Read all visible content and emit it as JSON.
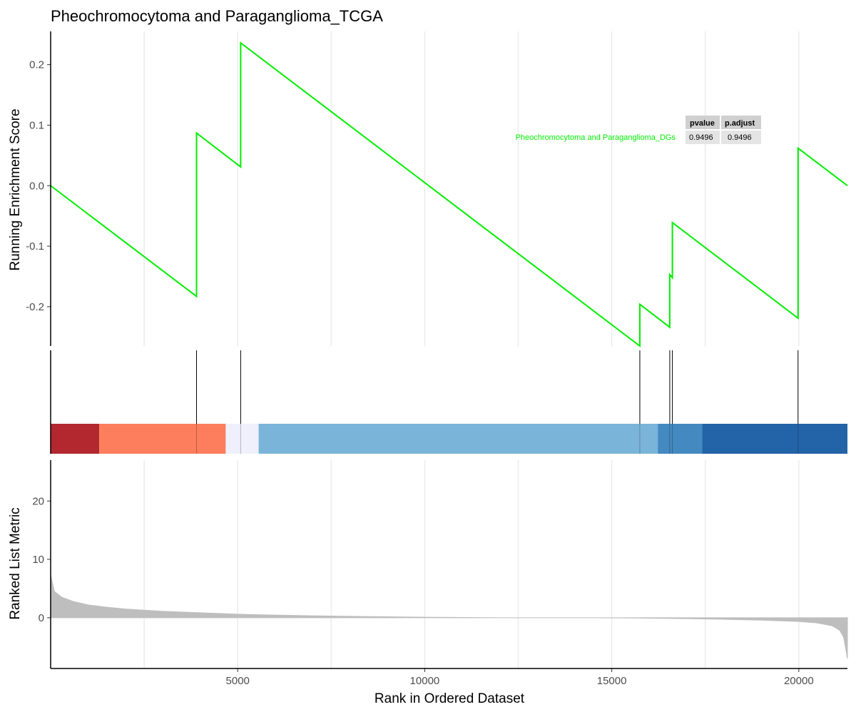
{
  "title": "Pheochromocytoma and Paraganglioma_TCGA",
  "chart_data": {
    "type": "line",
    "title": "Pheochromocytoma and Paraganglioma_TCGA",
    "xlabel": "Rank in Ordered Dataset",
    "xlim": [
      0,
      21300
    ],
    "x_ticks": [
      5000,
      10000,
      15000,
      20000
    ],
    "x_tick_labels": [
      "5000",
      "10000",
      "15000",
      "20000"
    ],
    "grid": true,
    "enrichment": {
      "ylabel": "Running Enrichment Score",
      "ylim": [
        -0.265,
        0.255
      ],
      "y_ticks": [
        -0.2,
        -0.1,
        0.0,
        0.1,
        0.2
      ],
      "y_tick_labels": [
        "-0.2",
        "-0.1",
        "0.0",
        "0.1",
        "0.2"
      ],
      "series_color": "#00EE00",
      "points": [
        [
          0,
          0.0
        ],
        [
          3900,
          -0.183
        ],
        [
          3900,
          0.087
        ],
        [
          5080,
          0.031
        ],
        [
          5080,
          0.236
        ],
        [
          15750,
          -0.265
        ],
        [
          15750,
          -0.196
        ],
        [
          16550,
          -0.234
        ],
        [
          16550,
          -0.147
        ],
        [
          16620,
          -0.152
        ],
        [
          16620,
          -0.061
        ],
        [
          19980,
          -0.219
        ],
        [
          19980,
          0.062
        ],
        [
          21300,
          0.0
        ]
      ]
    },
    "hit_positions": [
      3900,
      5080,
      15750,
      16550,
      16620,
      19980
    ],
    "color_bar": [
      {
        "start": 0,
        "end": 1300,
        "color": "#B2282E"
      },
      {
        "start": 1300,
        "end": 4680,
        "color": "#FC7E5D"
      },
      {
        "start": 4680,
        "end": 5560,
        "color": "#EFF0FB"
      },
      {
        "start": 5560,
        "end": 16230,
        "color": "#7AB5D9"
      },
      {
        "start": 16230,
        "end": 17420,
        "color": "#4589C1"
      },
      {
        "start": 17420,
        "end": 21300,
        "color": "#2363A7"
      }
    ],
    "ranked_metric": {
      "ylabel": "Ranked List Metric",
      "ylim": [
        -8.7,
        27
      ],
      "y_ticks": [
        0,
        10,
        20
      ],
      "y_tick_labels": [
        "0",
        "10",
        "20"
      ],
      "fill_color": "#BEBEBE",
      "points": [
        [
          0,
          7.4
        ],
        [
          100,
          4.5
        ],
        [
          300,
          3.5
        ],
        [
          600,
          2.8
        ],
        [
          1000,
          2.2
        ],
        [
          1500,
          1.8
        ],
        [
          2000,
          1.5
        ],
        [
          3000,
          1.1
        ],
        [
          4000,
          0.85
        ],
        [
          5000,
          0.6
        ],
        [
          6000,
          0.45
        ],
        [
          7000,
          0.33
        ],
        [
          8000,
          0.24
        ],
        [
          9000,
          0.16
        ],
        [
          10000,
          0.09
        ],
        [
          11000,
          0.04
        ],
        [
          12070,
          0.0
        ],
        [
          14570,
          0.0
        ],
        [
          15000,
          -0.02
        ],
        [
          16000,
          -0.08
        ],
        [
          17000,
          -0.16
        ],
        [
          18000,
          -0.27
        ],
        [
          19000,
          -0.42
        ],
        [
          20000,
          -0.65
        ],
        [
          20500,
          -0.9
        ],
        [
          20900,
          -1.4
        ],
        [
          21100,
          -2.2
        ],
        [
          21200,
          -3.4
        ],
        [
          21300,
          -7.0
        ]
      ]
    },
    "stats_table": {
      "headers": [
        "pvalue",
        "p.adjust"
      ],
      "rows": [
        {
          "label": "Pheochromocytoma and Paraganglioma_DGs",
          "values": [
            "0.9496",
            "0.9496"
          ]
        }
      ]
    }
  }
}
